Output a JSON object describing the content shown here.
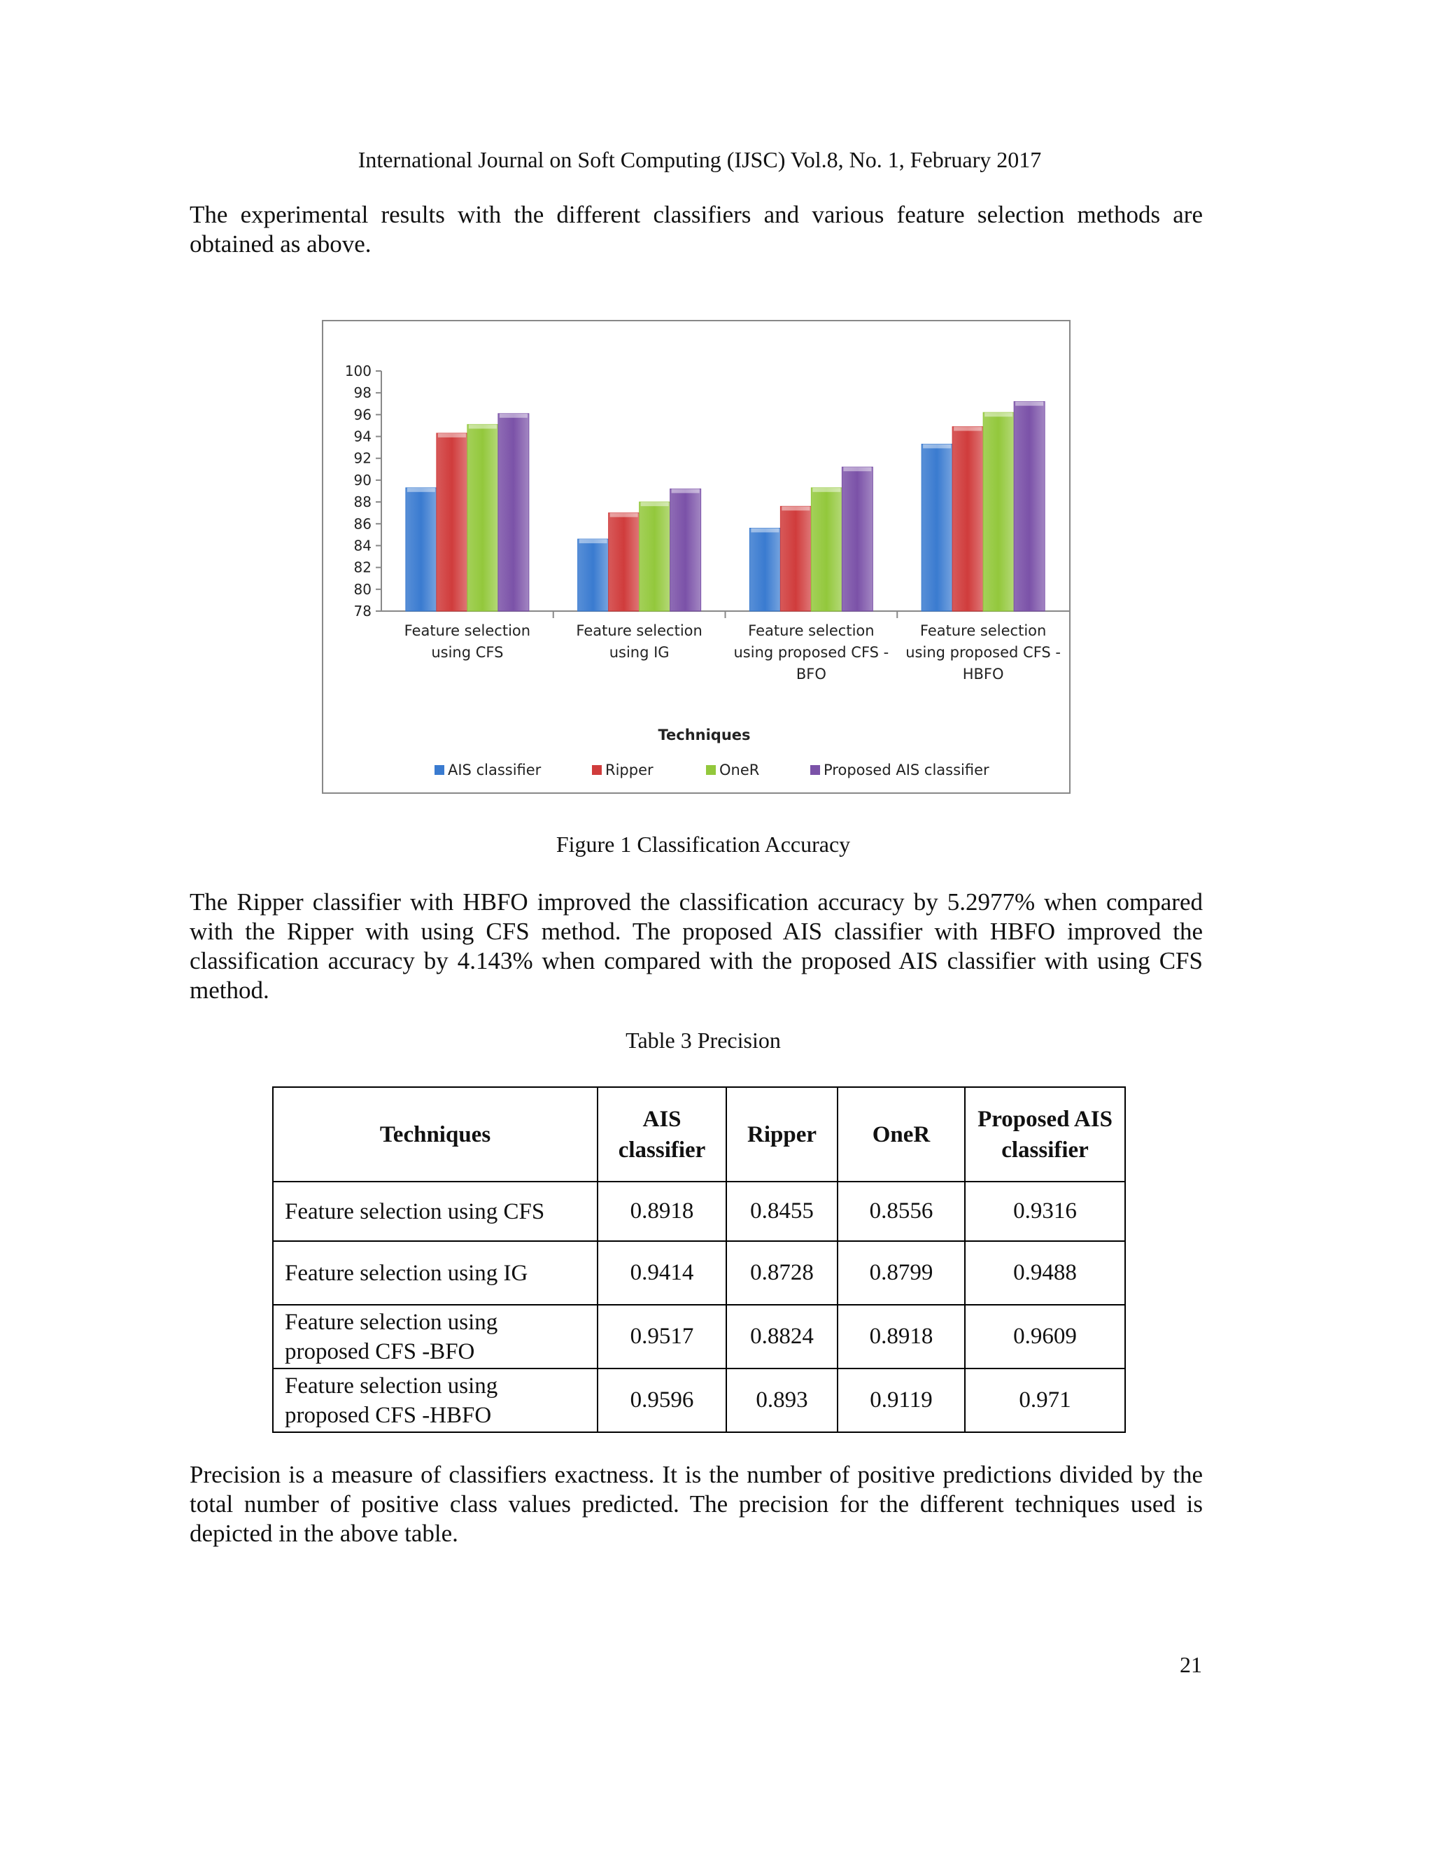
{
  "header": "International Journal on Soft Computing (IJSC) Vol.8, No. 1, February 2017",
  "para1": "The experimental results with the different classifiers and various feature selection methods are obtained as above.",
  "figure_caption": "Figure 1 Classification Accuracy",
  "para2": "The Ripper classifier with HBFO improved the classification accuracy by 5.2977% when compared with the Ripper with using CFS method. The proposed AIS classifier with HBFO improved the classification accuracy by 4.143% when compared with the proposed AIS classifier with using CFS method.",
  "table_caption": "Table 3 Precision",
  "table": {
    "headers": [
      "Techniques",
      "AIS classifier",
      "Ripper",
      "OneR",
      "Proposed AIS classifier"
    ],
    "rows": [
      [
        "Feature selection using CFS",
        "0.8918",
        "0.8455",
        "0.8556",
        "0.9316"
      ],
      [
        "Feature selection using IG",
        "0.9414",
        "0.8728",
        "0.8799",
        "0.9488"
      ],
      [
        "Feature selection using proposed CFS -BFO",
        "0.9517",
        "0.8824",
        "0.8918",
        "0.9609"
      ],
      [
        "Feature selection using proposed CFS -HBFO",
        "0.9596",
        "0.893",
        "0.9119",
        "0.971"
      ]
    ]
  },
  "para3": "Precision is a measure of classifiers exactness. It is the number of positive predictions divided by the total number of positive class values predicted. The precision for the different techniques used is depicted in the above table.",
  "page_number": "21",
  "chart_data": {
    "type": "bar",
    "title": "",
    "xlabel": "Techniques",
    "ylabel": "",
    "ylim": [
      78,
      100
    ],
    "yticks": [
      "78",
      "80",
      "82",
      "84",
      "86",
      "88",
      "90",
      "92",
      "94",
      "96",
      "98",
      "100"
    ],
    "grid": false,
    "legend": "bottom",
    "categories": [
      [
        "Feature selection",
        "using CFS"
      ],
      [
        "Feature selection",
        "using IG"
      ],
      [
        "Feature selection",
        "using proposed CFS -",
        "BFO"
      ],
      [
        "Feature selection",
        "using proposed CFS -",
        "HBFO"
      ]
    ],
    "series": [
      {
        "name": "AIS classifier",
        "color": "#3a7bd0",
        "values": [
          89.3,
          84.6,
          85.6,
          93.3
        ]
      },
      {
        "name": "Ripper",
        "color": "#d03c3c",
        "values": [
          94.3,
          87.0,
          87.6,
          94.9
        ]
      },
      {
        "name": "OneR",
        "color": "#93c83c",
        "values": [
          95.1,
          88.0,
          89.3,
          96.2
        ]
      },
      {
        "name": "Proposed AIS classifier",
        "color": "#7b52a8",
        "values": [
          96.1,
          89.2,
          91.2,
          97.2
        ]
      }
    ]
  }
}
